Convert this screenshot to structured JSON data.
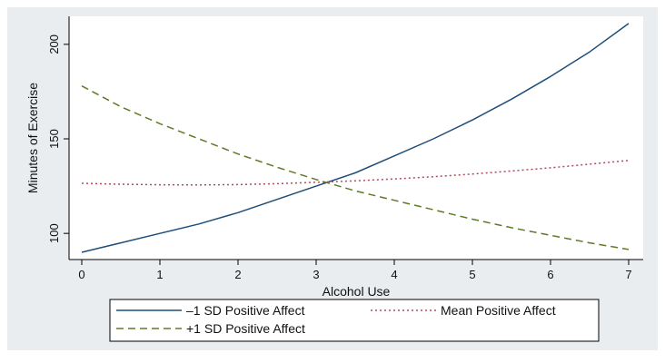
{
  "chart_data": {
    "type": "line",
    "title": "",
    "xlabel": "Alcohol Use",
    "ylabel": "Minutes of Exercise",
    "xlim": [
      0,
      7
    ],
    "ylim": [
      90,
      210
    ],
    "xticks": [
      0,
      1,
      2,
      3,
      4,
      5,
      6,
      7
    ],
    "yticks": [
      100,
      150,
      200
    ],
    "grid": false,
    "legend_position": "bottom",
    "x": [
      0,
      0.5,
      1,
      1.5,
      2,
      2.5,
      3,
      3.5,
      4,
      4.5,
      5,
      5.5,
      6,
      6.5,
      7
    ],
    "series": [
      {
        "name": "–1 SD Positive Affect",
        "color": "#1f4e79",
        "dash": "solid",
        "values": [
          90,
          95,
          100,
          105,
          111,
          118,
          125,
          132,
          141,
          150,
          160,
          171,
          183,
          196,
          211
        ]
      },
      {
        "name": "Mean Positive Affect",
        "color": "#b24a5a",
        "dash": "dotted",
        "values": [
          126.5,
          126,
          125.7,
          125.6,
          125.8,
          126.3,
          127,
          127.8,
          128.8,
          130,
          131.4,
          133,
          134.7,
          136.6,
          138.6
        ]
      },
      {
        "name": "+1 SD Positive Affect",
        "color": "#5e7a26",
        "dash": "dashed",
        "values": [
          178,
          167,
          158,
          150,
          142,
          135,
          128.5,
          122.5,
          117.5,
          112.5,
          107.5,
          103,
          99,
          95,
          91.5
        ]
      }
    ]
  }
}
